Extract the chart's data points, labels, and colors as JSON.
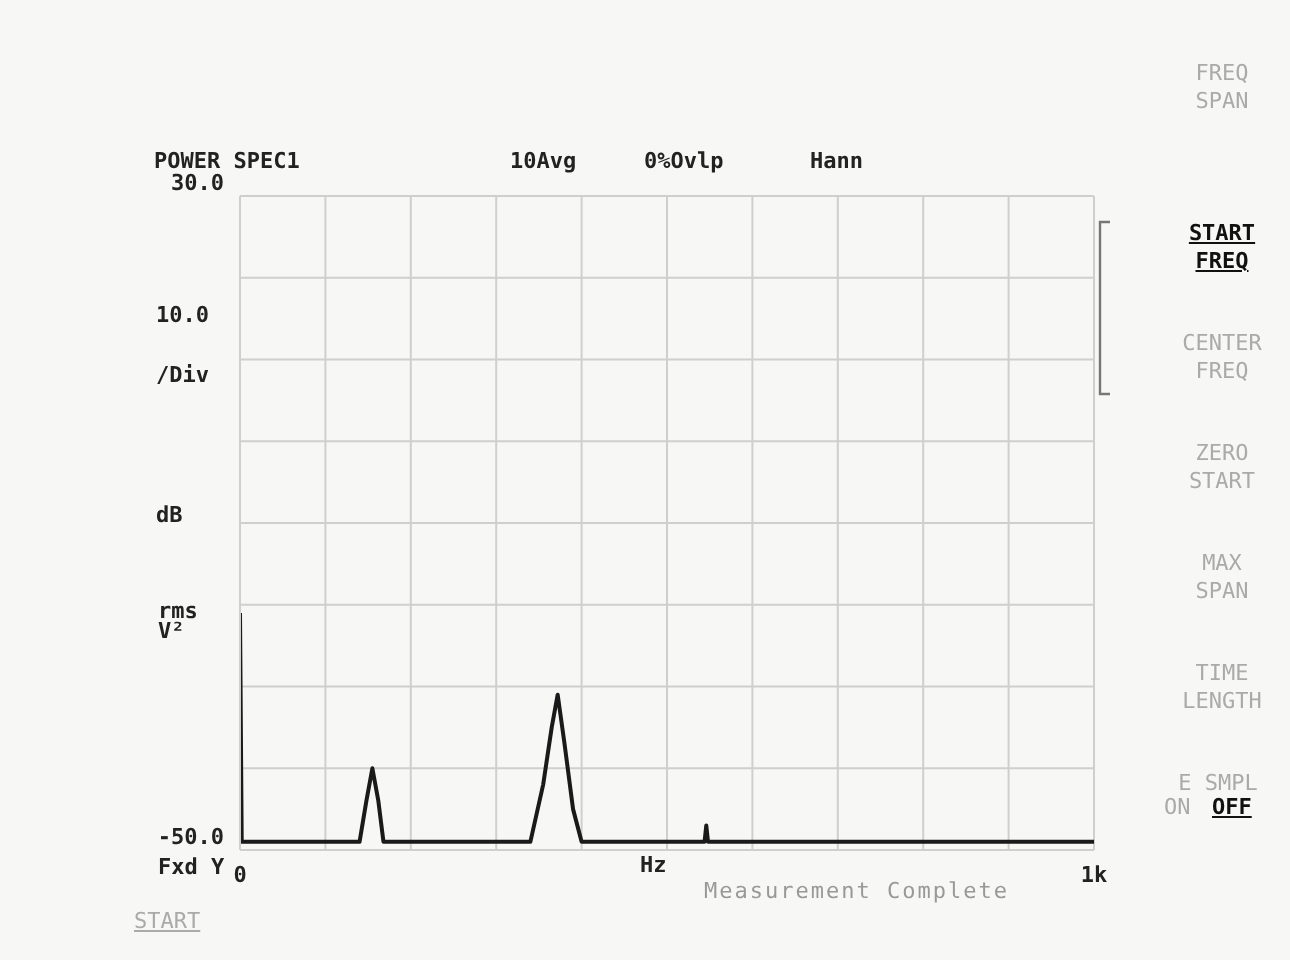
{
  "chart_data": {
    "type": "line",
    "title": "POWER SPEC1",
    "ylabel": "dB",
    "xlabel": "Hz",
    "annotations": [
      "10Avg",
      "0%Ovlp",
      "Hann",
      "10.0 /Div",
      "rms",
      "V²",
      "Fxd Y",
      "Measurement Complete",
      "START",
      "FREQ SPAN",
      "START FREQ",
      "CENTER FREQ",
      "ZERO START",
      "MAX SPAN",
      "TIME LENGTH",
      "E SMPL",
      "ON",
      "OFF"
    ],
    "x": [
      0,
      2,
      140,
      148,
      155,
      162,
      168,
      340,
      355,
      365,
      372,
      380,
      390,
      400,
      540,
      544,
      546,
      548,
      552,
      1000
    ],
    "series": [
      {
        "color": "#1a1a1a",
        "values": [
          -21,
          -49,
          -49,
          -44,
          -40,
          -44,
          -49,
          -49,
          -42,
          -35,
          -31,
          -37,
          -45,
          -49,
          -49,
          -49,
          -47,
          -49,
          -49,
          -49
        ]
      }
    ],
    "xlim": [
      0,
      1000
    ],
    "xticks": [
      0,
      {
        "value": 100,
        "label": null
      },
      {
        "value": 200,
        "label": null
      },
      {
        "value": 300,
        "label": null
      },
      {
        "value": 400,
        "label": null
      },
      {
        "value": 500,
        "label": null
      },
      {
        "value": 600,
        "label": null
      },
      {
        "value": 700,
        "label": null
      },
      {
        "value": 800,
        "label": null
      },
      {
        "value": 900,
        "label": null
      },
      {
        "value": 1000,
        "label": "1k"
      }
    ],
    "ylim": [
      -50,
      30
    ],
    "yticks": [
      {
        "value": -50,
        "label": "-50.0"
      },
      {
        "value": -40,
        "label": null
      },
      {
        "value": -30,
        "label": null
      },
      {
        "value": -20,
        "label": null
      },
      {
        "value": -10,
        "label": null
      },
      {
        "value": 0,
        "label": null
      },
      {
        "value": 10,
        "label": null
      },
      {
        "value": 20,
        "label": null
      },
      {
        "value": 30,
        "label": "30.0"
      }
    ],
    "grid": true,
    "marker": "none",
    "line_style": "solid"
  }
}
